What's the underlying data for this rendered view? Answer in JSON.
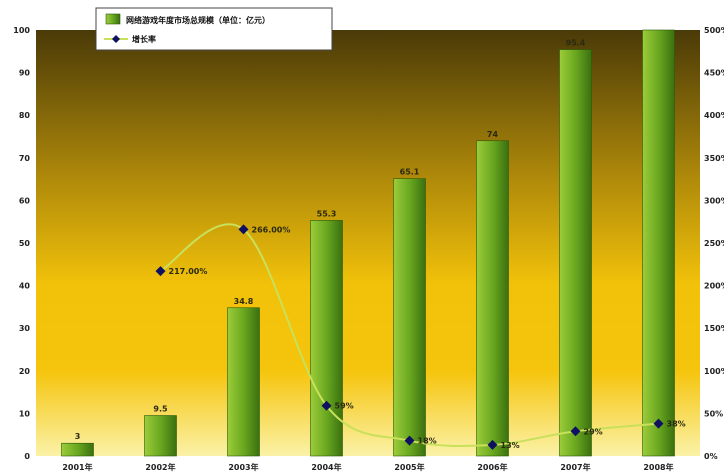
{
  "chart_data": {
    "type": "bar",
    "categories": [
      "2001年",
      "2002年",
      "2003年",
      "2004年",
      "2005年",
      "2006年",
      "2007年",
      "2008年"
    ],
    "series": [
      {
        "name": "网络游戏年度市场总规模（单位：亿元）",
        "type": "bar",
        "axis": "left",
        "values": [
          3,
          9.5,
          34.8,
          55.3,
          65.1,
          74,
          95.4,
          100
        ]
      },
      {
        "name": "增长率",
        "type": "line",
        "axis": "right",
        "values": [
          null,
          217,
          266,
          59,
          18,
          13,
          29,
          38
        ]
      }
    ],
    "bar_labels": [
      "3",
      "9.5",
      "34.8",
      "55.3",
      "65.1",
      "74",
      "95.4",
      ""
    ],
    "line_labels": [
      "",
      "217.00%",
      "266.00%",
      "59%",
      "18%",
      "13%",
      "29%",
      "38%"
    ],
    "ylim": [
      0,
      100
    ],
    "yticks": [
      "0",
      "10",
      "20",
      "30",
      "40",
      "50",
      "60",
      "70",
      "80",
      "90",
      "100"
    ],
    "y2lim": [
      0,
      500
    ],
    "y2ticks": [
      "0%",
      "50%",
      "100%",
      "150%",
      "200%",
      "250%",
      "300%",
      "350%",
      "400%",
      "450%",
      "500%"
    ],
    "legend_position": "top-left",
    "colors": {
      "bar": "#7ab82a",
      "line": "#c8e05a",
      "marker": "#101060",
      "bg_top": "#4a3a08",
      "bg_mid": "#f2c20a"
    }
  }
}
